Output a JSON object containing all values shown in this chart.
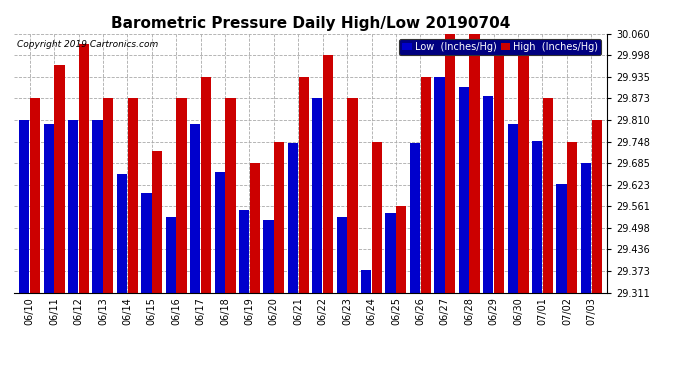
{
  "title": "Barometric Pressure Daily High/Low 20190704",
  "copyright": "Copyright 2019 Cartronics.com",
  "legend_low": "Low  (Inches/Hg)",
  "legend_high": "High  (Inches/Hg)",
  "background_color": "#ffffff",
  "plot_bg_color": "#ffffff",
  "low_color": "#0000cc",
  "high_color": "#cc0000",
  "dates": [
    "06/10",
    "06/11",
    "06/12",
    "06/13",
    "06/14",
    "06/15",
    "06/16",
    "06/17",
    "06/18",
    "06/19",
    "06/20",
    "06/21",
    "06/22",
    "06/23",
    "06/24",
    "06/25",
    "06/26",
    "06/27",
    "06/28",
    "06/29",
    "06/30",
    "07/01",
    "07/02",
    "07/03"
  ],
  "low_vals": [
    29.81,
    29.8,
    29.81,
    29.81,
    29.655,
    29.6,
    29.53,
    29.8,
    29.66,
    29.55,
    29.52,
    29.745,
    29.873,
    29.53,
    29.375,
    29.54,
    29.745,
    29.935,
    29.905,
    29.88,
    29.8,
    29.75,
    29.625,
    29.685
  ],
  "high_vals": [
    29.873,
    29.97,
    30.03,
    29.873,
    29.873,
    29.72,
    29.873,
    29.935,
    29.873,
    29.685,
    29.748,
    29.935,
    29.998,
    29.873,
    29.748,
    29.561,
    29.935,
    30.06,
    30.06,
    29.998,
    29.998,
    29.873,
    29.748,
    29.81
  ],
  "ylim_min": 29.311,
  "ylim_max": 30.06,
  "yticks": [
    29.311,
    29.373,
    29.436,
    29.498,
    29.561,
    29.623,
    29.685,
    29.748,
    29.81,
    29.873,
    29.935,
    29.998,
    30.06
  ],
  "grid_color": "#aaaaaa",
  "title_fontsize": 11,
  "tick_fontsize": 7,
  "legend_fontsize": 7,
  "bar_width": 0.42,
  "bar_gap": 0.02
}
